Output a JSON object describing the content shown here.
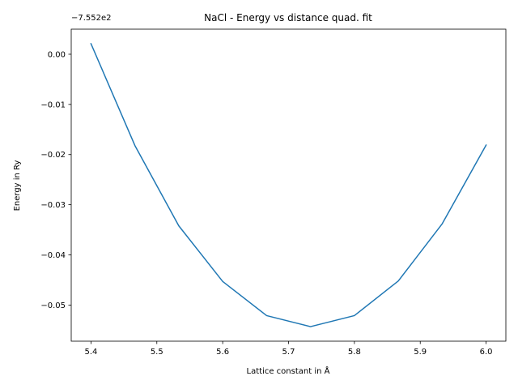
{
  "chart_data": {
    "type": "line",
    "title": "NaCl - Energy vs distance quad. fit",
    "xlabel": "Lattice constant in Å",
    "ylabel": "Energy in Ry",
    "y_offset_label": "−7.552e2",
    "xlim": [
      5.37,
      6.03
    ],
    "ylim": [
      -0.0572,
      0.005
    ],
    "x_ticks": [
      5.4,
      5.5,
      5.6,
      5.7,
      5.8,
      5.9,
      6.0
    ],
    "x_tick_labels": [
      "5.4",
      "5.5",
      "5.6",
      "5.7",
      "5.8",
      "5.9",
      "6.0"
    ],
    "y_ticks": [
      0.0,
      -0.01,
      -0.02,
      -0.03,
      -0.04,
      -0.05
    ],
    "y_tick_labels": [
      "0.00",
      "−0.01",
      "−0.02",
      "−0.03",
      "−0.04",
      "−0.05"
    ],
    "grid": false,
    "series": [
      {
        "color": "#1f77b4",
        "x": [
          5.4,
          5.4667,
          5.5333,
          5.6,
          5.6667,
          5.7333,
          5.8,
          5.8667,
          5.9333,
          6.0
        ],
        "y": [
          0.0021,
          -0.0182,
          -0.0342,
          -0.0453,
          -0.0521,
          -0.0543,
          -0.0521,
          -0.0452,
          -0.0338,
          -0.0181
        ]
      }
    ]
  }
}
